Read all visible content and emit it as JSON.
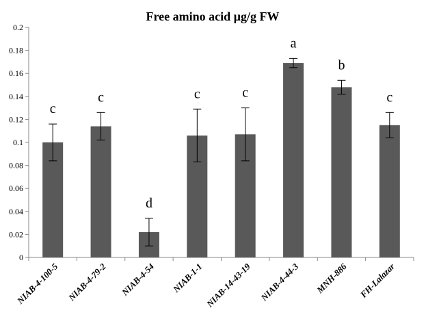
{
  "chart_data": {
    "type": "bar",
    "title": "Free amino acid µg/g FW",
    "xlabel": "",
    "ylabel": "",
    "ylim": [
      0,
      0.2
    ],
    "yticks": [
      "0",
      "0.02",
      "0.04",
      "0.06",
      "0.08",
      "0.1",
      "0.12",
      "0.14",
      "0.16",
      "0.18",
      "0.2"
    ],
    "categories": [
      "NIAB-4-100-5",
      "NIAB-4-79-2",
      "NIAB-4-54",
      "NIAB-1-1",
      "NIAB-14-43-19",
      "NIAB-4-44-3",
      "MNH-886",
      "FH-Lalazar"
    ],
    "values": [
      0.1,
      0.114,
      0.022,
      0.106,
      0.107,
      0.169,
      0.148,
      0.115
    ],
    "errors": [
      0.016,
      0.012,
      0.012,
      0.023,
      0.023,
      0.004,
      0.006,
      0.011
    ],
    "significance_letters": [
      "c",
      "c",
      "d",
      "c",
      "c",
      "a",
      "b",
      "c"
    ],
    "bar_color": "#595959",
    "grid": false,
    "legend": "none"
  }
}
